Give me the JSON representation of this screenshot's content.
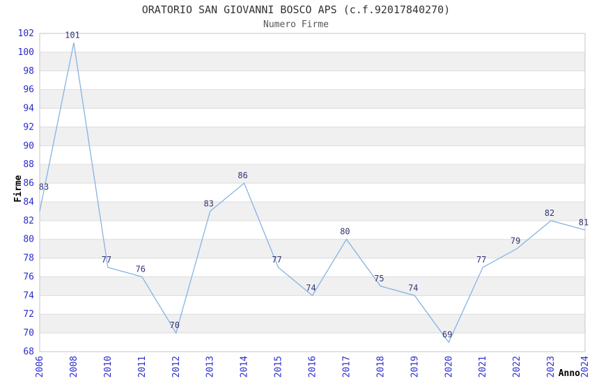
{
  "chart_data": {
    "type": "line",
    "title": "ORATORIO SAN GIOVANNI BOSCO APS (c.f.92017840270)",
    "subtitle": "Numero Firme",
    "xlabel": "Anno",
    "ylabel": "Firme",
    "categories": [
      "2006",
      "2008",
      "2010",
      "2011",
      "2012",
      "2013",
      "2014",
      "2015",
      "2016",
      "2017",
      "2018",
      "2019",
      "2020",
      "2021",
      "2022",
      "2023",
      "2024"
    ],
    "values": [
      83,
      101,
      77,
      76,
      70,
      83,
      86,
      77,
      74,
      80,
      75,
      74,
      69,
      77,
      79,
      82,
      81
    ],
    "ylim": [
      68,
      102
    ],
    "y_ticks": [
      68,
      70,
      72,
      74,
      76,
      78,
      80,
      82,
      84,
      86,
      88,
      90,
      92,
      94,
      96,
      98,
      100,
      102
    ],
    "grid": "horizontal",
    "legend": "none",
    "colors": {
      "line": "#85b3e3",
      "point_label": "#333375",
      "axis_tick_text": "#2a2acc",
      "axis_title_text": "#000000",
      "grid_line": "#dcdcdc",
      "plot_border": "#c6c6c6",
      "band_even": "#ffffff",
      "band_odd": "#f0f0f0",
      "title_text": "#333333",
      "subtitle_text": "#555555"
    }
  }
}
